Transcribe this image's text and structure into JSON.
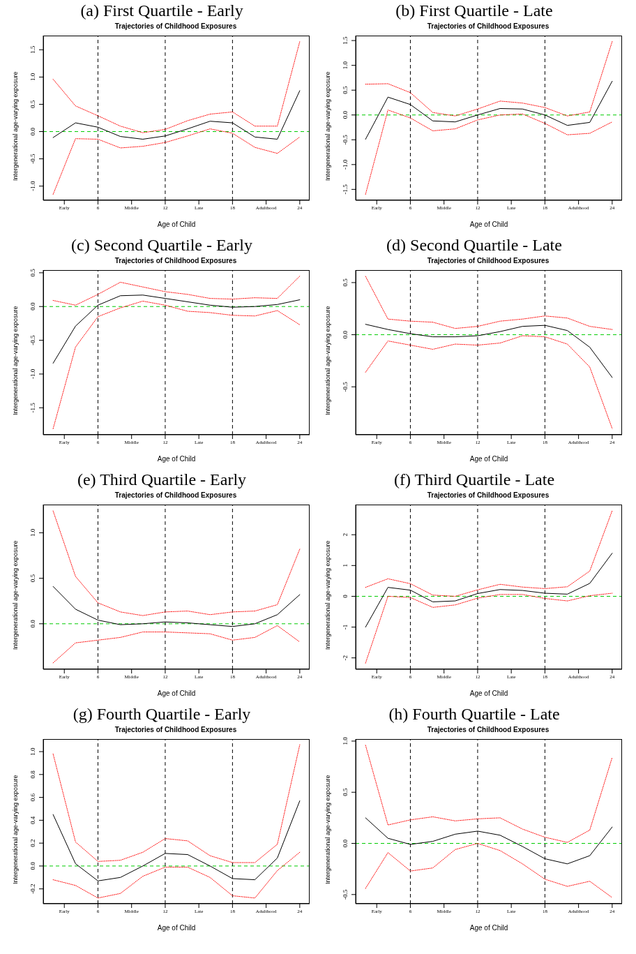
{
  "chart_data": [
    {
      "type": "line",
      "title": "(a) First Quartile - Early",
      "subtitle": "Trajectories of Childhood Exposures",
      "xlabel": "Age of Child",
      "ylabel": "Intergenerational age-varying exposure",
      "x": [
        2,
        4,
        6,
        8,
        10,
        12,
        14,
        16,
        18,
        20,
        22,
        24
      ],
      "xlim": [
        1.12,
        24.88
      ],
      "xticks": [
        {
          "value": 3,
          "label": "Early"
        },
        6,
        {
          "value": 9,
          "label": "Middle"
        },
        12,
        {
          "value": 15,
          "label": "Late"
        },
        18,
        {
          "value": 21,
          "label": "Adulthood"
        },
        24
      ],
      "ylim": [
        -1.26,
        1.76
      ],
      "yticks": [
        {
          "value": -1,
          "label": "-1.0"
        },
        -0.5,
        {
          "value": 0,
          "label": "0.0"
        },
        0.5,
        {
          "value": 1,
          "label": "1.0"
        },
        1.5
      ],
      "marker": "none",
      "series": [
        {
          "color": "#000000",
          "line_style": "solid",
          "values": [
            -0.11,
            0.16,
            0.08,
            -0.09,
            -0.14,
            -0.08,
            0.05,
            0.19,
            0.16,
            -0.1,
            -0.14,
            0.75
          ]
        },
        {
          "color": "#ff0000",
          "line_style": "dotted",
          "values": [
            0.96,
            0.47,
            0.29,
            0.1,
            -0.02,
            0.04,
            0.2,
            0.32,
            0.36,
            0.1,
            0.1,
            1.65
          ]
        },
        {
          "color": "#ff0000",
          "line_style": "dotted",
          "values": [
            -1.15,
            -0.13,
            -0.14,
            -0.3,
            -0.27,
            -0.2,
            -0.08,
            0.05,
            -0.03,
            -0.29,
            -0.4,
            -0.1
          ]
        }
      ],
      "ref_lines": [
        {
          "axis": "y",
          "value": 0,
          "color": "#00cc00",
          "line_style": "dashed"
        },
        {
          "axis": "x",
          "value": 6,
          "color": "#000000",
          "line_style": "dashed"
        },
        {
          "axis": "x",
          "value": 12,
          "color": "#000000",
          "line_style": "dashed"
        },
        {
          "axis": "x",
          "value": 18,
          "color": "#000000",
          "line_style": "dashed"
        }
      ]
    },
    {
      "type": "line",
      "title": "(b) First Quartile - Late",
      "subtitle": "Trajectories of Childhood Exposures",
      "xlabel": "Age of Child",
      "ylabel": "Intergenerational age-varying exposure",
      "x": [
        2,
        4,
        6,
        8,
        10,
        12,
        14,
        16,
        18,
        20,
        22,
        24
      ],
      "xlim": [
        1.12,
        24.88
      ],
      "xticks": [
        {
          "value": 3,
          "label": "Early"
        },
        6,
        {
          "value": 9,
          "label": "Middle"
        },
        12,
        {
          "value": 15,
          "label": "Late"
        },
        18,
        {
          "value": 21,
          "label": "Adulthood"
        },
        24
      ],
      "ylim": [
        -1.72,
        1.6
      ],
      "yticks": [
        -1.5,
        {
          "value": -1,
          "label": "-1.0"
        },
        -0.5,
        {
          "value": 0,
          "label": "0.0"
        },
        0.5,
        {
          "value": 1,
          "label": "1.0"
        },
        1.5
      ],
      "marker": "none",
      "series": [
        {
          "color": "#000000",
          "line_style": "solid",
          "values": [
            -0.49,
            0.36,
            0.21,
            -0.12,
            -0.14,
            0.0,
            0.13,
            0.12,
            0.0,
            -0.21,
            -0.15,
            0.68
          ]
        },
        {
          "color": "#ff0000",
          "line_style": "dotted",
          "values": [
            0.62,
            0.63,
            0.45,
            0.05,
            -0.02,
            0.12,
            0.28,
            0.24,
            0.15,
            -0.02,
            0.06,
            1.48
          ]
        },
        {
          "color": "#ff0000",
          "line_style": "dotted",
          "values": [
            -1.6,
            0.1,
            -0.06,
            -0.32,
            -0.28,
            -0.1,
            0.0,
            0.02,
            -0.17,
            -0.4,
            -0.37,
            -0.14
          ]
        }
      ],
      "ref_lines": [
        {
          "axis": "y",
          "value": 0,
          "color": "#00cc00",
          "line_style": "dashed"
        },
        {
          "axis": "x",
          "value": 6,
          "color": "#000000",
          "line_style": "dashed"
        },
        {
          "axis": "x",
          "value": 12,
          "color": "#000000",
          "line_style": "dashed"
        },
        {
          "axis": "x",
          "value": 18,
          "color": "#000000",
          "line_style": "dashed"
        }
      ]
    },
    {
      "type": "line",
      "title": "(c) Second Quartile - Early",
      "subtitle": "Trajectories of Childhood Exposures",
      "xlabel": "Age of Child",
      "ylabel": "Intergenerational age-varying exposure",
      "x": [
        2,
        4,
        6,
        8,
        10,
        12,
        14,
        16,
        18,
        20,
        22,
        24
      ],
      "xlim": [
        1.12,
        24.88
      ],
      "xticks": [
        {
          "value": 3,
          "label": "Early"
        },
        6,
        {
          "value": 9,
          "label": "Middle"
        },
        12,
        {
          "value": 15,
          "label": "Late"
        },
        18,
        {
          "value": 21,
          "label": "Adulthood"
        },
        24
      ],
      "ylim": [
        -1.9,
        0.54
      ],
      "yticks": [
        -1.5,
        {
          "value": -1,
          "label": "-1.0"
        },
        -0.5,
        {
          "value": 0,
          "label": "0.0"
        },
        0.5
      ],
      "marker": "none",
      "series": [
        {
          "color": "#000000",
          "line_style": "solid",
          "values": [
            -0.84,
            -0.29,
            0.02,
            0.16,
            0.17,
            0.12,
            0.07,
            0.02,
            -0.01,
            0.0,
            0.03,
            0.1
          ]
        },
        {
          "color": "#ff0000",
          "line_style": "dotted",
          "values": [
            0.09,
            0.02,
            0.18,
            0.36,
            0.29,
            0.22,
            0.18,
            0.12,
            0.11,
            0.13,
            0.12,
            0.45
          ]
        },
        {
          "color": "#ff0000",
          "line_style": "dotted",
          "values": [
            -1.81,
            -0.6,
            -0.15,
            -0.02,
            0.08,
            0.02,
            -0.07,
            -0.09,
            -0.13,
            -0.14,
            -0.06,
            -0.27
          ]
        }
      ],
      "ref_lines": [
        {
          "axis": "y",
          "value": 0,
          "color": "#00cc00",
          "line_style": "dashed"
        },
        {
          "axis": "x",
          "value": 6,
          "color": "#000000",
          "line_style": "dashed"
        },
        {
          "axis": "x",
          "value": 12,
          "color": "#000000",
          "line_style": "dashed"
        },
        {
          "axis": "x",
          "value": 18,
          "color": "#000000",
          "line_style": "dashed"
        }
      ]
    },
    {
      "type": "line",
      "title": "(d) Second Quartile - Late",
      "subtitle": "Trajectories of Childhood Exposures",
      "xlabel": "Age of Child",
      "ylabel": "Intergenerational age-varying exposure",
      "x": [
        2,
        4,
        6,
        8,
        10,
        12,
        14,
        16,
        18,
        20,
        22,
        24
      ],
      "xlim": [
        1.12,
        24.88
      ],
      "xticks": [
        {
          "value": 3,
          "label": "Early"
        },
        6,
        {
          "value": 9,
          "label": "Middle"
        },
        12,
        {
          "value": 15,
          "label": "Late"
        },
        18,
        {
          "value": 21,
          "label": "Adulthood"
        },
        24
      ],
      "ylim": [
        -0.96,
        0.62
      ],
      "yticks": [
        -0.5,
        {
          "value": 0,
          "label": "0.0"
        },
        0.5
      ],
      "marker": "none",
      "series": [
        {
          "color": "#000000",
          "line_style": "solid",
          "values": [
            0.1,
            0.05,
            0.01,
            -0.02,
            -0.02,
            -0.01,
            0.03,
            0.08,
            0.09,
            0.04,
            -0.12,
            -0.41
          ]
        },
        {
          "color": "#ff0000",
          "line_style": "dotted",
          "values": [
            0.56,
            0.15,
            0.13,
            0.12,
            0.06,
            0.08,
            0.13,
            0.15,
            0.18,
            0.16,
            0.08,
            0.05
          ]
        },
        {
          "color": "#ff0000",
          "line_style": "dotted",
          "values": [
            -0.36,
            -0.06,
            -0.1,
            -0.14,
            -0.09,
            -0.1,
            -0.08,
            -0.01,
            -0.02,
            -0.09,
            -0.31,
            -0.9
          ]
        }
      ],
      "ref_lines": [
        {
          "axis": "y",
          "value": 0,
          "color": "#00cc00",
          "line_style": "dashed"
        },
        {
          "axis": "x",
          "value": 6,
          "color": "#000000",
          "line_style": "dashed"
        },
        {
          "axis": "x",
          "value": 12,
          "color": "#000000",
          "line_style": "dashed"
        },
        {
          "axis": "x",
          "value": 18,
          "color": "#000000",
          "line_style": "dashed"
        }
      ]
    },
    {
      "type": "line",
      "title": "(e) Third Quartile - Early",
      "subtitle": "Trajectories of Childhood Exposures",
      "xlabel": "Age of Child",
      "ylabel": "Intergenerational age-varying exposure",
      "x": [
        2,
        4,
        6,
        8,
        10,
        12,
        14,
        16,
        18,
        20,
        22,
        24
      ],
      "xlim": [
        1.12,
        24.88
      ],
      "xticks": [
        {
          "value": 3,
          "label": "Early"
        },
        6,
        {
          "value": 9,
          "label": "Middle"
        },
        12,
        {
          "value": 15,
          "label": "Late"
        },
        18,
        {
          "value": 21,
          "label": "Adulthood"
        },
        24
      ],
      "ylim": [
        -0.5,
        1.31
      ],
      "yticks": [
        {
          "value": 0,
          "label": "0.0"
        },
        0.5,
        {
          "value": 1,
          "label": "1.0"
        }
      ],
      "marker": "none",
      "series": [
        {
          "color": "#000000",
          "line_style": "solid",
          "values": [
            0.41,
            0.16,
            0.04,
            -0.01,
            0.0,
            0.02,
            0.01,
            -0.01,
            -0.03,
            0.0,
            0.1,
            0.32
          ]
        },
        {
          "color": "#ff0000",
          "line_style": "dotted",
          "values": [
            1.24,
            0.52,
            0.23,
            0.13,
            0.09,
            0.13,
            0.14,
            0.1,
            0.13,
            0.14,
            0.21,
            0.82
          ]
        },
        {
          "color": "#ff0000",
          "line_style": "dotted",
          "values": [
            -0.43,
            -0.21,
            -0.18,
            -0.15,
            -0.09,
            -0.09,
            -0.1,
            -0.11,
            -0.18,
            -0.15,
            -0.02,
            -0.2
          ]
        }
      ],
      "ref_lines": [
        {
          "axis": "y",
          "value": 0,
          "color": "#00cc00",
          "line_style": "dashed"
        },
        {
          "axis": "x",
          "value": 6,
          "color": "#000000",
          "line_style": "dashed"
        },
        {
          "axis": "x",
          "value": 12,
          "color": "#000000",
          "line_style": "dashed"
        },
        {
          "axis": "x",
          "value": 18,
          "color": "#000000",
          "line_style": "dashed"
        }
      ]
    },
    {
      "type": "line",
      "title": "(f) Third Quartile - Late",
      "subtitle": "Trajectories of Childhood Exposures",
      "xlabel": "Age of Child",
      "ylabel": "Intergenerational age-varying exposure",
      "x": [
        2,
        4,
        6,
        8,
        10,
        12,
        14,
        16,
        18,
        20,
        22,
        24
      ],
      "xlim": [
        1.12,
        24.88
      ],
      "xticks": [
        {
          "value": 3,
          "label": "Early"
        },
        6,
        {
          "value": 9,
          "label": "Middle"
        },
        12,
        {
          "value": 15,
          "label": "Late"
        },
        18,
        {
          "value": 21,
          "label": "Adulthood"
        },
        24
      ],
      "ylim": [
        -2.37,
        2.98
      ],
      "yticks": [
        -2,
        -1,
        0,
        1,
        2
      ],
      "marker": "none",
      "series": [
        {
          "color": "#000000",
          "line_style": "solid",
          "values": [
            -1.0,
            0.29,
            0.2,
            -0.18,
            -0.15,
            0.09,
            0.22,
            0.19,
            0.1,
            0.07,
            0.42,
            1.4
          ]
        },
        {
          "color": "#ff0000",
          "line_style": "dotted",
          "values": [
            0.29,
            0.57,
            0.41,
            0.04,
            0.0,
            0.21,
            0.39,
            0.3,
            0.25,
            0.31,
            0.82,
            2.78
          ]
        },
        {
          "color": "#ff0000",
          "line_style": "dotted",
          "values": [
            -2.17,
            0.0,
            -0.04,
            -0.36,
            -0.28,
            -0.06,
            0.06,
            0.06,
            -0.07,
            -0.15,
            0.02,
            0.1
          ]
        }
      ],
      "ref_lines": [
        {
          "axis": "y",
          "value": 0,
          "color": "#00cc00",
          "line_style": "dashed"
        },
        {
          "axis": "x",
          "value": 6,
          "color": "#000000",
          "line_style": "dashed"
        },
        {
          "axis": "x",
          "value": 12,
          "color": "#000000",
          "line_style": "dashed"
        },
        {
          "axis": "x",
          "value": 18,
          "color": "#000000",
          "line_style": "dashed"
        }
      ]
    },
    {
      "type": "line",
      "title": "(g) Fourth Quartile - Early",
      "subtitle": "Trajectories of Childhood Exposures",
      "xlabel": "Age of Child",
      "ylabel": "Intergenerational age-varying exposure",
      "x": [
        2,
        4,
        6,
        8,
        10,
        12,
        14,
        16,
        18,
        20,
        22,
        24
      ],
      "xlim": [
        1.12,
        24.88
      ],
      "xticks": [
        {
          "value": 3,
          "label": "Early"
        },
        6,
        {
          "value": 9,
          "label": "Middle"
        },
        12,
        {
          "value": 15,
          "label": "Late"
        },
        18,
        {
          "value": 21,
          "label": "Adulthood"
        },
        24
      ],
      "ylim": [
        -0.33,
        1.11
      ],
      "yticks": [
        -0.2,
        {
          "value": 0,
          "label": "0.0"
        },
        0.2,
        0.4,
        0.6,
        0.8,
        {
          "value": 1,
          "label": "1.0"
        }
      ],
      "marker": "none",
      "series": [
        {
          "color": "#000000",
          "line_style": "solid",
          "values": [
            0.45,
            0.02,
            -0.13,
            -0.1,
            0.0,
            0.11,
            0.1,
            0.0,
            -0.11,
            -0.12,
            0.07,
            0.57
          ]
        },
        {
          "color": "#ff0000",
          "line_style": "dotted",
          "values": [
            0.98,
            0.21,
            0.04,
            0.05,
            0.12,
            0.24,
            0.22,
            0.09,
            0.03,
            0.03,
            0.19,
            1.06
          ]
        },
        {
          "color": "#ff0000",
          "line_style": "dotted",
          "values": [
            -0.12,
            -0.17,
            -0.28,
            -0.24,
            -0.09,
            -0.01,
            -0.01,
            -0.1,
            -0.26,
            -0.28,
            -0.04,
            0.12
          ]
        }
      ],
      "ref_lines": [
        {
          "axis": "y",
          "value": 0,
          "color": "#00cc00",
          "line_style": "dashed"
        },
        {
          "axis": "x",
          "value": 6,
          "color": "#000000",
          "line_style": "dashed"
        },
        {
          "axis": "x",
          "value": 12,
          "color": "#000000",
          "line_style": "dashed"
        },
        {
          "axis": "x",
          "value": 18,
          "color": "#000000",
          "line_style": "dashed"
        }
      ]
    },
    {
      "type": "line",
      "title": "(h) Fourth Quartile - Late",
      "subtitle": "Trajectories of Childhood Exposures",
      "xlabel": "Age of Child",
      "ylabel": "Intergenerational age-varying exposure",
      "x": [
        2,
        4,
        6,
        8,
        10,
        12,
        14,
        16,
        18,
        20,
        22,
        24
      ],
      "xlim": [
        1.12,
        24.88
      ],
      "xticks": [
        {
          "value": 3,
          "label": "Early"
        },
        6,
        {
          "value": 9,
          "label": "Middle"
        },
        12,
        {
          "value": 15,
          "label": "Late"
        },
        18,
        {
          "value": 21,
          "label": "Adulthood"
        },
        24
      ],
      "ylim": [
        -0.59,
        1.02
      ],
      "yticks": [
        -0.5,
        {
          "value": 0,
          "label": "0.0"
        },
        0.5,
        {
          "value": 1,
          "label": "1.0"
        }
      ],
      "marker": "none",
      "series": [
        {
          "color": "#000000",
          "line_style": "solid",
          "values": [
            0.25,
            0.05,
            -0.01,
            0.02,
            0.09,
            0.12,
            0.08,
            -0.03,
            -0.15,
            -0.2,
            -0.12,
            0.16
          ]
        },
        {
          "color": "#ff0000",
          "line_style": "dotted",
          "values": [
            0.96,
            0.18,
            0.23,
            0.26,
            0.22,
            0.24,
            0.25,
            0.14,
            0.06,
            0.01,
            0.13,
            0.84
          ]
        },
        {
          "color": "#ff0000",
          "line_style": "dotted",
          "values": [
            -0.44,
            -0.09,
            -0.27,
            -0.24,
            -0.06,
            0.0,
            -0.07,
            -0.2,
            -0.35,
            -0.42,
            -0.37,
            -0.53
          ]
        }
      ],
      "ref_lines": [
        {
          "axis": "y",
          "value": 0,
          "color": "#00cc00",
          "line_style": "dashed"
        },
        {
          "axis": "x",
          "value": 6,
          "color": "#000000",
          "line_style": "dashed"
        },
        {
          "axis": "x",
          "value": 12,
          "color": "#000000",
          "line_style": "dashed"
        },
        {
          "axis": "x",
          "value": 18,
          "color": "#000000",
          "line_style": "dashed"
        }
      ]
    }
  ]
}
